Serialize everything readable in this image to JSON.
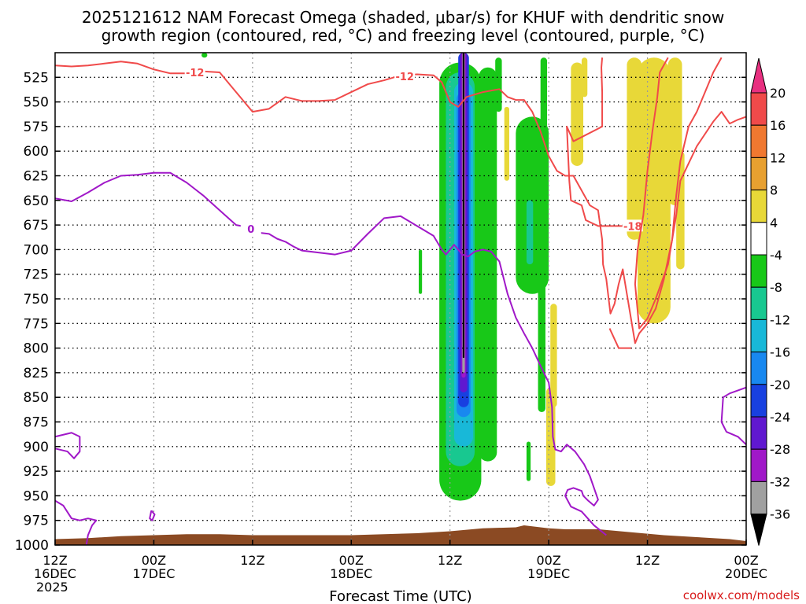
{
  "chart_data": {
    "type": "heatmap",
    "title_line1": "2025121612 NAM Forecast Omega (shaded, μbar/s) for KHUF with dendritic snow",
    "title_line2": "growth region (contoured, red, °C) and freezing level (contoured, purple, °C)",
    "xlabel": "Forecast Time (UTC)",
    "credit": "coolwx.com/models",
    "x_hours_range": [
      0,
      84
    ],
    "y_range_mb": [
      500,
      1000
    ],
    "pressure_levels": [
      525,
      550,
      575,
      600,
      625,
      650,
      675,
      700,
      725,
      750,
      775,
      800,
      825,
      850,
      875,
      900,
      925,
      950,
      975,
      1000
    ],
    "x_ticks": [
      {
        "h": 0,
        "l1": "12Z",
        "l2": "16DEC",
        "l3": "2025"
      },
      {
        "h": 12,
        "l1": "00Z",
        "l2": "17DEC",
        "l3": ""
      },
      {
        "h": 24,
        "l1": "12Z",
        "l2": "",
        "l3": ""
      },
      {
        "h": 36,
        "l1": "00Z",
        "l2": "18DEC",
        "l3": ""
      },
      {
        "h": 48,
        "l1": "12Z",
        "l2": "",
        "l3": ""
      },
      {
        "h": 60,
        "l1": "00Z",
        "l2": "19DEC",
        "l3": ""
      },
      {
        "h": 72,
        "l1": "12Z",
        "l2": "",
        "l3": ""
      },
      {
        "h": 84,
        "l1": "00Z",
        "l2": "20DEC",
        "l3": ""
      }
    ],
    "colorbar": {
      "labels": [
        "20",
        "16",
        "12",
        "8",
        "4",
        "-4",
        "-8",
        "-12",
        "-16",
        "-20",
        "-24",
        "-28",
        "-32",
        "-36"
      ],
      "colors": [
        "#e8336b",
        "#f04a4a",
        "#f07830",
        "#e8a030",
        "#e8d838",
        "#ffffff",
        "#18c818",
        "#18c890",
        "#18b8d8",
        "#1888f0",
        "#1840e0",
        "#6018d0",
        "#a018c8",
        "#a0a0a0",
        "#000000"
      ],
      "top_color": "#e83080",
      "bottom_color": "#000000"
    },
    "omega_regions": [
      {
        "category": "-8",
        "color": "#18c818",
        "h0": 46.7,
        "h1": 51.8,
        "p0": 510,
        "p1": 955
      },
      {
        "category": "-8",
        "color": "#18c818",
        "h0": 51.5,
        "h1": 53.7,
        "p0": 515,
        "p1": 915
      },
      {
        "category": "-8",
        "color": "#18c818",
        "h0": 53.5,
        "h1": 54.3,
        "p0": 505,
        "p1": 560
      },
      {
        "category": "-8",
        "color": "#18c818",
        "h0": 56.0,
        "h1": 60.0,
        "p0": 565,
        "p1": 745
      },
      {
        "category": "-8",
        "color": "#18c818",
        "h0": 58.7,
        "h1": 59.6,
        "p0": 645,
        "p1": 865
      },
      {
        "category": "-8",
        "color": "#18c818",
        "h0": 59.0,
        "h1": 59.8,
        "p0": 505,
        "p1": 660
      },
      {
        "category": "-8",
        "color": "#18c818",
        "h0": 44.2,
        "h1": 44.6,
        "p0": 700,
        "p1": 745
      },
      {
        "category": "-8",
        "color": "#18c818",
        "h0": 57.3,
        "h1": 57.8,
        "p0": 895,
        "p1": 935
      },
      {
        "category": "-8",
        "color": "#18c818",
        "h0": 17.8,
        "h1": 18.5,
        "p0": 500,
        "p1": 505
      },
      {
        "category": "-12",
        "color": "#18c890",
        "h0": 47.5,
        "h1": 51.0,
        "p0": 520,
        "p1": 920
      },
      {
        "category": "-12",
        "color": "#18c890",
        "h0": 57.3,
        "h1": 58.1,
        "p0": 650,
        "p1": 715
      },
      {
        "category": "-16",
        "color": "#18b8d8",
        "h0": 48.5,
        "h1": 50.8,
        "p0": 530,
        "p1": 900
      },
      {
        "category": "-20",
        "color": "#1888f0",
        "h0": 48.8,
        "h1": 50.5,
        "p0": 540,
        "p1": 870
      },
      {
        "category": "-24",
        "color": "#1840e0",
        "h0": 49.0,
        "h1": 50.3,
        "p0": 500,
        "p1": 860
      },
      {
        "category": "-28",
        "color": "#6018d0",
        "h0": 49.2,
        "h1": 50.1,
        "p0": 500,
        "p1": 845
      },
      {
        "category": "-32",
        "color": "#a018c8",
        "h0": 49.4,
        "h1": 49.9,
        "p0": 500,
        "p1": 830
      },
      {
        "category": "-36",
        "color": "#a0a0a0",
        "h0": 49.5,
        "h1": 49.8,
        "p0": 500,
        "p1": 825
      },
      {
        "category": "<-36",
        "color": "#000000",
        "h0": 49.55,
        "h1": 49.75,
        "p0": 500,
        "p1": 810
      },
      {
        "category": "4",
        "color": "#e8d838",
        "h0": 54.6,
        "h1": 55.2,
        "p0": 555,
        "p1": 630
      },
      {
        "category": "4",
        "color": "#e8d838",
        "h0": 60.2,
        "h1": 61.0,
        "p0": 755,
        "p1": 860
      },
      {
        "category": "4",
        "color": "#e8d838",
        "h0": 59.7,
        "h1": 60.8,
        "p0": 840,
        "p1": 940
      },
      {
        "category": "4",
        "color": "#e8d838",
        "h0": 62.7,
        "h1": 64.2,
        "p0": 510,
        "p1": 615
      },
      {
        "category": "4",
        "color": "#e8d838",
        "h0": 64.0,
        "h1": 64.7,
        "p0": 505,
        "p1": 545
      },
      {
        "category": "4",
        "color": "#e8d838",
        "h0": 70.8,
        "h1": 74.8,
        "p0": 505,
        "p1": 775
      },
      {
        "category": "4",
        "color": "#e8d838",
        "h0": 69.5,
        "h1": 71.3,
        "p0": 505,
        "p1": 690
      },
      {
        "category": "4",
        "color": "#e8d838",
        "h0": 74.5,
        "h1": 76.2,
        "p0": 505,
        "p1": 655
      },
      {
        "category": "4",
        "color": "#e8d838",
        "h0": 75.5,
        "h1": 76.5,
        "p0": 600,
        "p1": 720
      }
    ],
    "dgz_contours": [
      {
        "label": "-12",
        "label_at": [
          17.0,
          520
        ],
        "points": [
          [
            0,
            513
          ],
          [
            2,
            514
          ],
          [
            4,
            513
          ],
          [
            6,
            511
          ],
          [
            8,
            509
          ],
          [
            10,
            511
          ],
          [
            12,
            517
          ],
          [
            14,
            521
          ],
          [
            16,
            521
          ],
          [
            18,
            519
          ],
          [
            20,
            520
          ],
          [
            22,
            540
          ],
          [
            24,
            560
          ],
          [
            26,
            557
          ],
          [
            28,
            545
          ],
          [
            30,
            549
          ],
          [
            32,
            549
          ],
          [
            34,
            548
          ],
          [
            36,
            540
          ],
          [
            38,
            532
          ],
          [
            40,
            528
          ],
          [
            42,
            523
          ],
          [
            44,
            522
          ],
          [
            46,
            523
          ],
          [
            47,
            530
          ],
          [
            48,
            550
          ],
          [
            49,
            555
          ],
          [
            50,
            545
          ],
          [
            52,
            540
          ],
          [
            54,
            537
          ],
          [
            55,
            545
          ],
          [
            56,
            548
          ],
          [
            57,
            548
          ],
          [
            58,
            560
          ],
          [
            59,
            580
          ],
          [
            60,
            605
          ],
          [
            61,
            620
          ],
          [
            62,
            625
          ],
          [
            63,
            625
          ],
          [
            64,
            640
          ],
          [
            65,
            655
          ],
          [
            66,
            660
          ],
          [
            66.5,
            690
          ],
          [
            66.6,
            715
          ],
          [
            67,
            730
          ],
          [
            67.5,
            765
          ],
          [
            68,
            755
          ],
          [
            68.5,
            735
          ],
          [
            69,
            720
          ],
          [
            69.5,
            745
          ],
          [
            70,
            770
          ],
          [
            70.5,
            795
          ],
          [
            71,
            785
          ],
          [
            72,
            775
          ],
          [
            73,
            760
          ],
          [
            74,
            730
          ],
          [
            75,
            690
          ],
          [
            75.5,
            645
          ],
          [
            76,
            610
          ],
          [
            77,
            575
          ],
          [
            78,
            560
          ],
          [
            79,
            540
          ],
          [
            80,
            520
          ],
          [
            81,
            505
          ]
        ]
      },
      {
        "label": "-12",
        "label_at": [
          42.5,
          524
        ],
        "points": [
          [
            67.4,
            780
          ],
          [
            68.5,
            800
          ],
          [
            70,
            800
          ]
        ]
      },
      {
        "label": "-18",
        "label_at": [
          70.2,
          676
        ],
        "points": [
          [
            66.5,
            505
          ],
          [
            66.4,
            515
          ],
          [
            66.5,
            540
          ],
          [
            66.5,
            575
          ],
          [
            63.0,
            590
          ],
          [
            62.2,
            575
          ],
          [
            62.5,
            630
          ],
          [
            62.7,
            650
          ],
          [
            64.0,
            655
          ],
          [
            64.5,
            670
          ],
          [
            66.0,
            676
          ],
          [
            68.0,
            676
          ],
          [
            69.0,
            676
          ]
        ]
      },
      {
        "label": "",
        "label_at": null,
        "points": [
          [
            74.5,
            505
          ],
          [
            73.5,
            520
          ],
          [
            73.2,
            545
          ],
          [
            72.6,
            580
          ],
          [
            72.0,
            620
          ],
          [
            71.5,
            665
          ],
          [
            70.8,
            700
          ],
          [
            70.5,
            735
          ],
          [
            71.0,
            780
          ],
          [
            72.0,
            770
          ],
          [
            73.0,
            750
          ],
          [
            74.5,
            715
          ],
          [
            75.5,
            665
          ],
          [
            76.0,
            630
          ],
          [
            78.0,
            595
          ],
          [
            80.0,
            570
          ],
          [
            81.0,
            560
          ],
          [
            82.0,
            572
          ],
          [
            83.0,
            568
          ],
          [
            84.0,
            565
          ]
        ]
      }
    ],
    "freezing_contours": [
      {
        "label": "0",
        "label_at": [
          23.8,
          679
        ],
        "points": [
          [
            0,
            648
          ],
          [
            2,
            651
          ],
          [
            4,
            642
          ],
          [
            6,
            632
          ],
          [
            8,
            625
          ],
          [
            10,
            624
          ],
          [
            12,
            622
          ],
          [
            14,
            622
          ],
          [
            16,
            632
          ],
          [
            18,
            645
          ],
          [
            20,
            660
          ],
          [
            22,
            675
          ],
          [
            24,
            678
          ],
          [
            25,
            683
          ],
          [
            26,
            684
          ],
          [
            27,
            689
          ],
          [
            28,
            692
          ],
          [
            29,
            697
          ],
          [
            30,
            701
          ],
          [
            32,
            703
          ],
          [
            34,
            705
          ],
          [
            36,
            701
          ],
          [
            38,
            684
          ],
          [
            40,
            668
          ],
          [
            42,
            666
          ],
          [
            44,
            676
          ],
          [
            46,
            686
          ],
          [
            47,
            700
          ],
          [
            47.5,
            705
          ],
          [
            48.5,
            695
          ],
          [
            49.5,
            705
          ],
          [
            50.2,
            707
          ],
          [
            51,
            702
          ],
          [
            52,
            700
          ],
          [
            53,
            702
          ],
          [
            54,
            712
          ],
          [
            55,
            745
          ],
          [
            56,
            769
          ],
          [
            57,
            785
          ],
          [
            58,
            800
          ],
          [
            59,
            818
          ],
          [
            60,
            835
          ],
          [
            60.4,
            860
          ],
          [
            60.5,
            890
          ],
          [
            60.8,
            903
          ],
          [
            61.5,
            905
          ],
          [
            62.2,
            898
          ],
          [
            63.2,
            905
          ],
          [
            64.3,
            918
          ],
          [
            65,
            930
          ],
          [
            66,
            954
          ],
          [
            65.5,
            960
          ],
          [
            64.8,
            955
          ],
          [
            64.2,
            950
          ],
          [
            64.0,
            945
          ],
          [
            63.0,
            942
          ],
          [
            62.3,
            944
          ],
          [
            62.0,
            950
          ],
          [
            62.7,
            961
          ],
          [
            64.0,
            966
          ],
          [
            65.5,
            980
          ],
          [
            67,
            990
          ]
        ]
      },
      {
        "label": "",
        "label_at": null,
        "points": [
          [
            0,
            890
          ],
          [
            2,
            886
          ],
          [
            3.0,
            890
          ],
          [
            3.0,
            905
          ],
          [
            2.3,
            912
          ],
          [
            1.5,
            905
          ],
          [
            0,
            902
          ]
        ]
      },
      {
        "label": "",
        "label_at": null,
        "points": [
          [
            0,
            955
          ],
          [
            1,
            960
          ],
          [
            2,
            973
          ],
          [
            3,
            975
          ],
          [
            4.0,
            973
          ],
          [
            5.0,
            975
          ],
          [
            4.5,
            980
          ],
          [
            4.0,
            990
          ],
          [
            3.8,
            1000
          ]
        ]
      },
      {
        "label": "",
        "label_at": null,
        "points": [
          [
            11.7,
            965
          ],
          [
            12.1,
            969
          ],
          [
            11.8,
            975
          ],
          [
            11.5,
            973
          ],
          [
            11.7,
            965
          ]
        ]
      },
      {
        "label": "",
        "label_at": null,
        "points": [
          [
            84,
            840
          ],
          [
            83,
            843
          ],
          [
            82,
            846
          ],
          [
            81.2,
            850
          ],
          [
            81.0,
            875
          ],
          [
            81.6,
            885
          ],
          [
            83,
            890
          ],
          [
            84,
            898
          ]
        ]
      }
    ],
    "terrain": {
      "color": "#8b4a23",
      "surface": [
        [
          0,
          994
        ],
        [
          4,
          993
        ],
        [
          8,
          991
        ],
        [
          12,
          990
        ],
        [
          16,
          989
        ],
        [
          20,
          989
        ],
        [
          24,
          990
        ],
        [
          30,
          990
        ],
        [
          36,
          990
        ],
        [
          40,
          989
        ],
        [
          44,
          988
        ],
        [
          48,
          986
        ],
        [
          52,
          983
        ],
        [
          56,
          982
        ],
        [
          57,
          980
        ],
        [
          58,
          981
        ],
        [
          60,
          983
        ],
        [
          62,
          984
        ],
        [
          66,
          984
        ],
        [
          70,
          987
        ],
        [
          74,
          990
        ],
        [
          78,
          992
        ],
        [
          82,
          994
        ],
        [
          84,
          996
        ]
      ]
    }
  }
}
